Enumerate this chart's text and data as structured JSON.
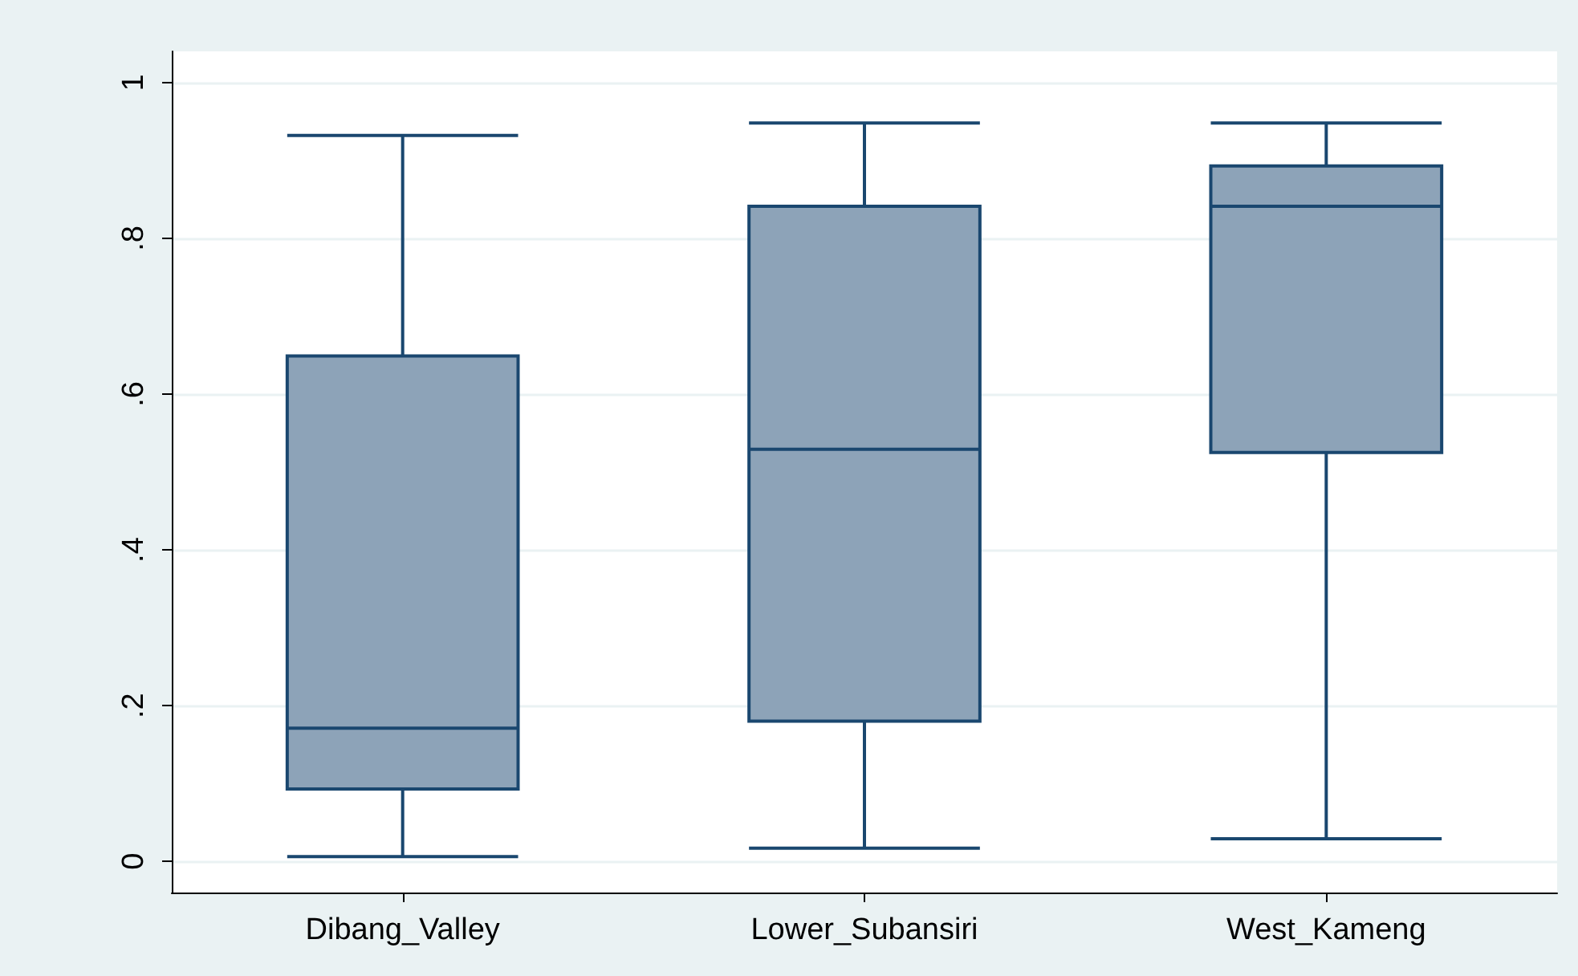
{
  "chart_data": {
    "type": "box",
    "categories": [
      "Dibang_Valley",
      "Lower_Subansiri",
      "West_Kameng"
    ],
    "boxes": [
      {
        "low": 0.006,
        "q1": 0.093,
        "median": 0.171,
        "q3": 0.649,
        "high": 0.932
      },
      {
        "low": 0.017,
        "q1": 0.18,
        "median": 0.529,
        "q3": 0.841,
        "high": 0.948
      },
      {
        "low": 0.029,
        "q1": 0.525,
        "median": 0.841,
        "q3": 0.893,
        "high": 0.948
      }
    ],
    "color": "#8da3b8",
    "ylim": [
      -0.04,
      1.04
    ],
    "yticks": [
      0,
      {
        "value": 0.2,
        "label": ".2"
      },
      {
        "value": 0.4,
        "label": ".4"
      },
      {
        "value": 0.6,
        "label": ".6"
      },
      {
        "value": 0.8,
        "label": ".8"
      },
      1
    ],
    "grid": "y"
  }
}
